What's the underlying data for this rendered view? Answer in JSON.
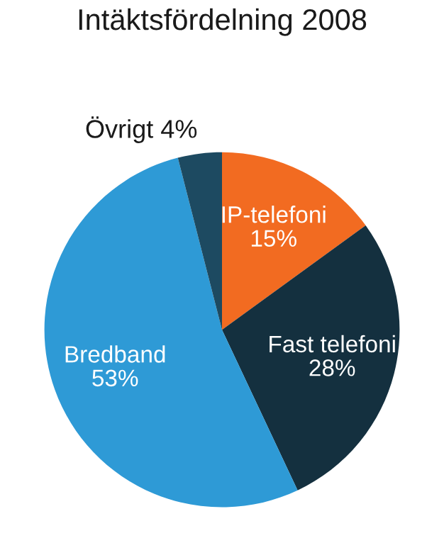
{
  "chart_data": {
    "type": "pie",
    "title": "Intäktsfördelning 2008",
    "categories": [
      "IP-telefoni",
      "Fast telefoni",
      "Bredband",
      "Övrigt"
    ],
    "values": [
      15,
      28,
      53,
      4
    ],
    "value_labels": [
      "15%",
      "28%",
      "53%",
      "4%"
    ],
    "colors": [
      "#f26b21",
      "#14303f",
      "#2e9ad6",
      "#1d4a61"
    ],
    "legend": false
  }
}
